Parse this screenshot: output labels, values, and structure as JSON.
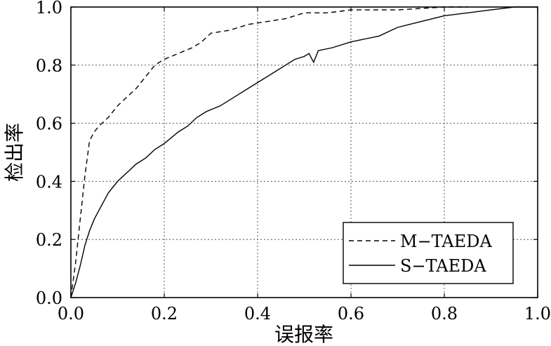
{
  "chart_data": {
    "type": "line",
    "xlabel": "误报率",
    "ylabel": "检出率",
    "xlim": [
      0,
      1
    ],
    "ylim": [
      0,
      1
    ],
    "xticks": [
      "0.0",
      "0.2",
      "0.4",
      "0.6",
      "0.8",
      "1.0"
    ],
    "yticks": [
      "0.0",
      "0.2",
      "0.4",
      "0.6",
      "0.8",
      "1.0"
    ],
    "grid": true,
    "legend_position": "bottom-right",
    "series": [
      {
        "name": "M−TAEDA",
        "style": "dashed",
        "color": "#000000",
        "x": [
          0,
          0.01,
          0.02,
          0.03,
          0.04,
          0.05,
          0.06,
          0.08,
          0.1,
          0.12,
          0.14,
          0.16,
          0.18,
          0.2,
          0.23,
          0.26,
          0.28,
          0.3,
          0.34,
          0.38,
          0.42,
          0.46,
          0.5,
          0.55,
          0.6,
          0.7,
          0.8,
          0.85
        ],
        "y": [
          0,
          0.12,
          0.27,
          0.42,
          0.54,
          0.57,
          0.59,
          0.62,
          0.66,
          0.69,
          0.72,
          0.76,
          0.8,
          0.82,
          0.84,
          0.86,
          0.88,
          0.91,
          0.92,
          0.94,
          0.95,
          0.96,
          0.98,
          0.98,
          0.99,
          0.99,
          1.0,
          1.0
        ]
      },
      {
        "name": "S−TAEDA",
        "style": "solid",
        "color": "#000000",
        "x": [
          0,
          0.01,
          0.02,
          0.03,
          0.04,
          0.05,
          0.06,
          0.07,
          0.08,
          0.1,
          0.12,
          0.14,
          0.16,
          0.18,
          0.2,
          0.23,
          0.25,
          0.27,
          0.29,
          0.32,
          0.35,
          0.38,
          0.41,
          0.44,
          0.46,
          0.48,
          0.5,
          0.51,
          0.52,
          0.53,
          0.56,
          0.6,
          0.63,
          0.66,
          0.7,
          0.75,
          0.8,
          0.85,
          0.9,
          0.95,
          1.0
        ],
        "y": [
          0,
          0.05,
          0.11,
          0.18,
          0.23,
          0.27,
          0.3,
          0.33,
          0.36,
          0.4,
          0.43,
          0.46,
          0.48,
          0.51,
          0.53,
          0.57,
          0.59,
          0.62,
          0.64,
          0.66,
          0.69,
          0.72,
          0.75,
          0.78,
          0.8,
          0.82,
          0.83,
          0.84,
          0.81,
          0.85,
          0.86,
          0.88,
          0.89,
          0.9,
          0.93,
          0.95,
          0.97,
          0.98,
          0.99,
          1.0,
          1.0
        ]
      }
    ]
  }
}
